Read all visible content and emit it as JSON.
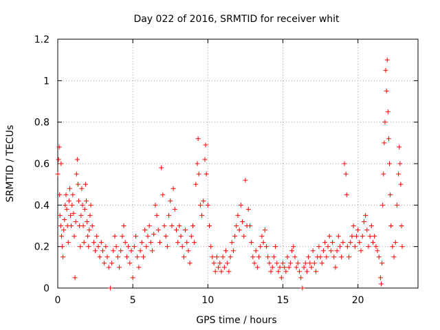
{
  "chart_data": {
    "type": "scatter",
    "title": "Day 022 of 2016, SRMTID for receiver whit",
    "xlabel": "GPS time / hours",
    "ylabel": "SRMTID / TECUs",
    "xlim": [
      0,
      24
    ],
    "ylim": [
      0,
      1.2
    ],
    "x_ticks": [
      0,
      5,
      10,
      15,
      20
    ],
    "x_tick_labels": [
      "0",
      "5",
      "10",
      "15",
      "20"
    ],
    "y_ticks": [
      0,
      0.2,
      0.4,
      0.6,
      0.8,
      1.0,
      1.2
    ],
    "y_tick_labels": [
      "0",
      "0.2",
      "0.4",
      "0.6",
      "0.8",
      "1",
      "1.2"
    ],
    "grid": true,
    "marker": "+",
    "color": "#ff0000",
    "series": [
      {
        "name": "SRMTID",
        "points": [
          [
            0.0,
            0.55
          ],
          [
            0.05,
            0.62
          ],
          [
            0.1,
            0.68
          ],
          [
            0.12,
            0.45
          ],
          [
            0.15,
            0.35
          ],
          [
            0.2,
            0.3
          ],
          [
            0.22,
            0.6
          ],
          [
            0.25,
            0.25
          ],
          [
            0.3,
            0.2
          ],
          [
            0.35,
            0.15
          ],
          [
            0.4,
            0.28
          ],
          [
            0.45,
            0.33
          ],
          [
            0.5,
            0.4
          ],
          [
            0.55,
            0.45
          ],
          [
            0.6,
            0.38
          ],
          [
            0.65,
            0.3
          ],
          [
            0.7,
            0.22
          ],
          [
            0.75,
            0.42
          ],
          [
            0.8,
            0.48
          ],
          [
            0.85,
            0.35
          ],
          [
            0.9,
            0.3
          ],
          [
            0.95,
            0.4
          ],
          [
            1.0,
            0.45
          ],
          [
            1.05,
            0.36
          ],
          [
            1.1,
            0.25
          ],
          [
            1.15,
            0.05
          ],
          [
            1.2,
            0.32
          ],
          [
            1.25,
            0.55
          ],
          [
            1.3,
            0.62
          ],
          [
            1.35,
            0.5
          ],
          [
            1.4,
            0.42
          ],
          [
            1.45,
            0.3
          ],
          [
            1.5,
            0.2
          ],
          [
            1.55,
            0.35
          ],
          [
            1.6,
            0.48
          ],
          [
            1.65,
            0.4
          ],
          [
            1.7,
            0.3
          ],
          [
            1.75,
            0.22
          ],
          [
            1.8,
            0.38
          ],
          [
            1.85,
            0.5
          ],
          [
            1.9,
            0.42
          ],
          [
            1.95,
            0.32
          ],
          [
            2.0,
            0.25
          ],
          [
            2.05,
            0.2
          ],
          [
            2.1,
            0.28
          ],
          [
            2.15,
            0.35
          ],
          [
            2.2,
            0.4
          ],
          [
            2.3,
            0.3
          ],
          [
            2.4,
            0.22
          ],
          [
            2.5,
            0.18
          ],
          [
            2.6,
            0.25
          ],
          [
            2.7,
            0.2
          ],
          [
            2.8,
            0.15
          ],
          [
            2.9,
            0.22
          ],
          [
            3.0,
            0.18
          ],
          [
            3.1,
            0.12
          ],
          [
            3.2,
            0.2
          ],
          [
            3.3,
            0.15
          ],
          [
            3.4,
            0.1
          ],
          [
            3.5,
            0.0
          ],
          [
            3.6,
            0.12
          ],
          [
            3.7,
            0.18
          ],
          [
            3.8,
            0.25
          ],
          [
            3.9,
            0.2
          ],
          [
            4.0,
            0.15
          ],
          [
            4.1,
            0.1
          ],
          [
            4.2,
            0.18
          ],
          [
            4.3,
            0.25
          ],
          [
            4.4,
            0.3
          ],
          [
            4.5,
            0.22
          ],
          [
            4.6,
            0.15
          ],
          [
            4.7,
            0.2
          ],
          [
            4.8,
            0.12
          ],
          [
            4.9,
            0.18
          ],
          [
            5.0,
            0.05
          ],
          [
            5.1,
            0.2
          ],
          [
            5.2,
            0.25
          ],
          [
            5.3,
            0.15
          ],
          [
            5.4,
            0.1
          ],
          [
            5.5,
            0.18
          ],
          [
            5.6,
            0.22
          ],
          [
            5.7,
            0.15
          ],
          [
            5.8,
            0.28
          ],
          [
            5.9,
            0.2
          ],
          [
            6.0,
            0.25
          ],
          [
            6.1,
            0.3
          ],
          [
            6.2,
            0.22
          ],
          [
            6.3,
            0.18
          ],
          [
            6.4,
            0.26
          ],
          [
            6.5,
            0.4
          ],
          [
            6.6,
            0.35
          ],
          [
            6.7,
            0.28
          ],
          [
            6.8,
            0.22
          ],
          [
            6.9,
            0.58
          ],
          [
            7.0,
            0.45
          ],
          [
            7.1,
            0.3
          ],
          [
            7.2,
            0.25
          ],
          [
            7.3,
            0.2
          ],
          [
            7.4,
            0.35
          ],
          [
            7.5,
            0.42
          ],
          [
            7.6,
            0.3
          ],
          [
            7.7,
            0.48
          ],
          [
            7.8,
            0.38
          ],
          [
            7.9,
            0.28
          ],
          [
            8.0,
            0.22
          ],
          [
            8.1,
            0.3
          ],
          [
            8.2,
            0.25
          ],
          [
            8.3,
            0.2
          ],
          [
            8.4,
            0.15
          ],
          [
            8.5,
            0.28
          ],
          [
            8.6,
            0.22
          ],
          [
            8.7,
            0.18
          ],
          [
            8.8,
            0.12
          ],
          [
            8.9,
            0.25
          ],
          [
            9.0,
            0.3
          ],
          [
            9.1,
            0.22
          ],
          [
            9.2,
            0.5
          ],
          [
            9.3,
            0.6
          ],
          [
            9.35,
            0.72
          ],
          [
            9.4,
            0.55
          ],
          [
            9.5,
            0.4
          ],
          [
            9.6,
            0.35
          ],
          [
            9.7,
            0.42
          ],
          [
            9.8,
            0.62
          ],
          [
            9.85,
            0.69
          ],
          [
            9.9,
            0.55
          ],
          [
            10.0,
            0.4
          ],
          [
            10.1,
            0.3
          ],
          [
            10.2,
            0.2
          ],
          [
            10.3,
            0.15
          ],
          [
            10.4,
            0.12
          ],
          [
            10.5,
            0.08
          ],
          [
            10.6,
            0.15
          ],
          [
            10.7,
            0.1
          ],
          [
            10.8,
            0.12
          ],
          [
            10.9,
            0.08
          ],
          [
            11.0,
            0.15
          ],
          [
            11.1,
            0.1
          ],
          [
            11.2,
            0.18
          ],
          [
            11.3,
            0.12
          ],
          [
            11.4,
            0.08
          ],
          [
            11.5,
            0.15
          ],
          [
            11.6,
            0.22
          ],
          [
            11.7,
            0.18
          ],
          [
            11.8,
            0.25
          ],
          [
            11.9,
            0.3
          ],
          [
            12.0,
            0.35
          ],
          [
            12.1,
            0.28
          ],
          [
            12.2,
            0.4
          ],
          [
            12.3,
            0.32
          ],
          [
            12.4,
            0.25
          ],
          [
            12.5,
            0.52
          ],
          [
            12.6,
            0.3
          ],
          [
            12.7,
            0.38
          ],
          [
            12.8,
            0.3
          ],
          [
            12.9,
            0.22
          ],
          [
            13.0,
            0.15
          ],
          [
            13.1,
            0.12
          ],
          [
            13.2,
            0.18
          ],
          [
            13.3,
            0.1
          ],
          [
            13.4,
            0.15
          ],
          [
            13.5,
            0.2
          ],
          [
            13.6,
            0.25
          ],
          [
            13.7,
            0.22
          ],
          [
            13.8,
            0.28
          ],
          [
            13.9,
            0.2
          ],
          [
            14.0,
            0.15
          ],
          [
            14.1,
            0.12
          ],
          [
            14.2,
            0.08
          ],
          [
            14.3,
            0.1
          ],
          [
            14.4,
            0.15
          ],
          [
            14.5,
            0.2
          ],
          [
            14.6,
            0.12
          ],
          [
            14.7,
            0.08
          ],
          [
            14.8,
            0.1
          ],
          [
            14.9,
            0.05
          ],
          [
            15.0,
            0.12
          ],
          [
            15.1,
            0.1
          ],
          [
            15.2,
            0.08
          ],
          [
            15.3,
            0.15
          ],
          [
            15.4,
            0.1
          ],
          [
            15.5,
            0.12
          ],
          [
            15.6,
            0.18
          ],
          [
            15.7,
            0.2
          ],
          [
            15.8,
            0.15
          ],
          [
            15.9,
            0.1
          ],
          [
            16.0,
            0.12
          ],
          [
            16.1,
            0.08
          ],
          [
            16.2,
            0.05
          ],
          [
            16.3,
            0.0
          ],
          [
            16.4,
            0.1
          ],
          [
            16.5,
            0.12
          ],
          [
            16.6,
            0.08
          ],
          [
            16.7,
            0.15
          ],
          [
            16.8,
            0.12
          ],
          [
            16.9,
            0.1
          ],
          [
            17.0,
            0.18
          ],
          [
            17.1,
            0.12
          ],
          [
            17.2,
            0.08
          ],
          [
            17.3,
            0.15
          ],
          [
            17.4,
            0.2
          ],
          [
            17.5,
            0.15
          ],
          [
            17.6,
            0.12
          ],
          [
            17.7,
            0.18
          ],
          [
            17.8,
            0.22
          ],
          [
            17.9,
            0.15
          ],
          [
            18.0,
            0.2
          ],
          [
            18.1,
            0.25
          ],
          [
            18.2,
            0.18
          ],
          [
            18.3,
            0.22
          ],
          [
            18.4,
            0.15
          ],
          [
            18.5,
            0.1
          ],
          [
            18.6,
            0.18
          ],
          [
            18.7,
            0.25
          ],
          [
            18.8,
            0.2
          ],
          [
            18.9,
            0.15
          ],
          [
            19.0,
            0.22
          ],
          [
            19.1,
            0.6
          ],
          [
            19.2,
            0.55
          ],
          [
            19.25,
            0.45
          ],
          [
            19.3,
            0.2
          ],
          [
            19.4,
            0.15
          ],
          [
            19.5,
            0.22
          ],
          [
            19.6,
            0.25
          ],
          [
            19.7,
            0.3
          ],
          [
            19.8,
            0.2
          ],
          [
            19.9,
            0.25
          ],
          [
            20.0,
            0.28
          ],
          [
            20.1,
            0.22
          ],
          [
            20.2,
            0.18
          ],
          [
            20.3,
            0.25
          ],
          [
            20.4,
            0.32
          ],
          [
            20.5,
            0.35
          ],
          [
            20.6,
            0.28
          ],
          [
            20.7,
            0.2
          ],
          [
            20.8,
            0.25
          ],
          [
            20.9,
            0.3
          ],
          [
            21.0,
            0.22
          ],
          [
            21.1,
            0.25
          ],
          [
            21.2,
            0.2
          ],
          [
            21.3,
            0.18
          ],
          [
            21.4,
            0.15
          ],
          [
            21.5,
            0.05
          ],
          [
            21.55,
            0.02
          ],
          [
            21.6,
            0.12
          ],
          [
            21.65,
            0.4
          ],
          [
            21.7,
            0.55
          ],
          [
            21.75,
            0.7
          ],
          [
            21.8,
            0.8
          ],
          [
            21.85,
            1.05
          ],
          [
            21.9,
            0.95
          ],
          [
            21.95,
            1.1
          ],
          [
            22.0,
            0.85
          ],
          [
            22.05,
            0.72
          ],
          [
            22.1,
            0.6
          ],
          [
            22.15,
            0.45
          ],
          [
            22.2,
            0.3
          ],
          [
            22.3,
            0.2
          ],
          [
            22.4,
            0.15
          ],
          [
            22.5,
            0.22
          ],
          [
            22.6,
            0.4
          ],
          [
            22.7,
            0.55
          ],
          [
            22.75,
            0.68
          ],
          [
            22.8,
            0.6
          ],
          [
            22.85,
            0.5
          ],
          [
            22.9,
            0.3
          ],
          [
            22.95,
            0.2
          ]
        ]
      }
    ]
  }
}
